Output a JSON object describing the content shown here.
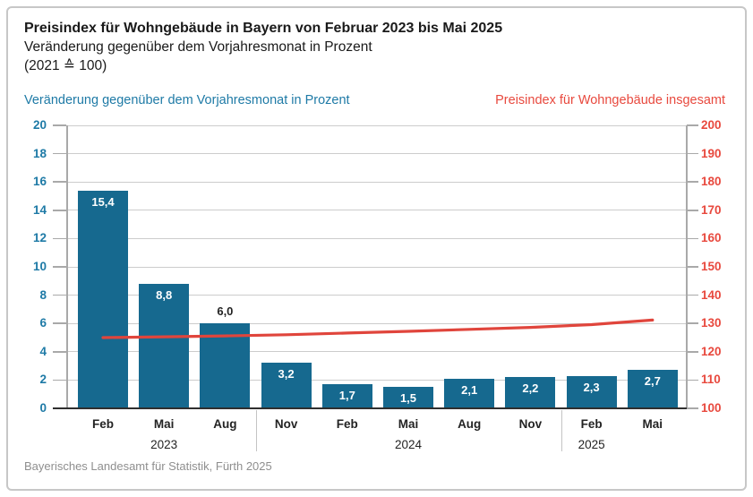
{
  "header": {
    "title": "Preisindex für Wohngebäude in Bayern von Februar 2023 bis Mai 2025",
    "subtitle": "Veränderung gegenüber dem Vorjahresmonat in Prozent",
    "scale_note": "(2021 ≙ 100)"
  },
  "axis_headers": {
    "left": "Veränderung gegenüber dem Vorjahresmonat in Prozent",
    "right": "Preisindex für Wohngebäude insgesamt"
  },
  "footer": {
    "source": "Bayerisches Landesamt für Statistik, Fürth 2025"
  },
  "colors": {
    "bar": "#16698f",
    "line": "#e0453c",
    "blue_text": "#1e7aa6",
    "red_text": "#e8493e",
    "grid": "#cccccc",
    "axis": "#a9a9a9",
    "baseline": "#2f2f2f",
    "text": "#232323",
    "divider": "#c4c4c4",
    "bar_label_inside": "#ffffff"
  },
  "chart_data": {
    "type": "bar+line combo",
    "title": "Preisindex für Wohngebäude in Bayern von Februar 2023 bis Mai 2025",
    "subtitle": "Veränderung gegenüber dem Vorjahresmonat in Prozent (2021 ≙ 100)",
    "categories": [
      "Feb",
      "Mai",
      "Aug",
      "Nov",
      "Feb",
      "Mai",
      "Aug",
      "Nov",
      "Feb",
      "Mai"
    ],
    "year_groups": [
      {
        "label": "2023",
        "under_index": 1
      },
      {
        "label": "2024",
        "under_index": 5
      },
      {
        "label": "2025",
        "under_index": 8
      }
    ],
    "dividers_after_index": [
      2,
      7
    ],
    "series": [
      {
        "name": "Veränderung gegenüber dem Vorjahresmonat in Prozent",
        "type": "bar",
        "axis": "left",
        "values": [
          15.4,
          8.8,
          6.0,
          3.2,
          1.7,
          1.5,
          2.1,
          2.2,
          2.3,
          2.7
        ],
        "labels": [
          "15,4",
          "8,8",
          "6,0",
          "3,2",
          "1,7",
          "1,5",
          "2,1",
          "2,2",
          "2,3",
          "2,7"
        ],
        "label_placement": [
          "inside",
          "inside",
          "above",
          "inside",
          "inside",
          "inside",
          "inside",
          "inside",
          "inside",
          "inside"
        ]
      },
      {
        "name": "Preisindex für Wohngebäude insgesamt",
        "type": "line",
        "axis": "right",
        "values": [
          125.0,
          125.3,
          125.6,
          126.0,
          126.6,
          127.2,
          127.9,
          128.6,
          129.6,
          131.2
        ],
        "note": "values estimated from gridlines, no data labels shown"
      }
    ],
    "left_axis": {
      "label": "Veränderung gegenüber dem Vorjahresmonat in Prozent",
      "min": 0,
      "max": 20,
      "step": 2,
      "ticks": [
        "0",
        "2",
        "4",
        "6",
        "8",
        "10",
        "12",
        "14",
        "16",
        "18",
        "20"
      ]
    },
    "right_axis": {
      "label": "Preisindex für Wohngebäude insgesamt",
      "min": 100,
      "max": 200,
      "step": 10,
      "ticks": [
        "100",
        "110",
        "120",
        "130",
        "140",
        "150",
        "160",
        "170",
        "180",
        "190",
        "200"
      ]
    },
    "grid": "horizontal",
    "legend_position": "top, as colored axis headers"
  }
}
